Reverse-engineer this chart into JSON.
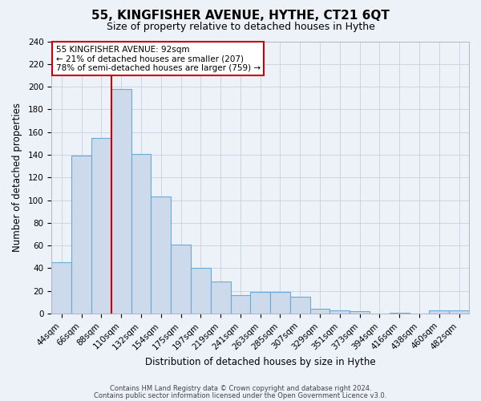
{
  "title": "55, KINGFISHER AVENUE, HYTHE, CT21 6QT",
  "subtitle": "Size of property relative to detached houses in Hythe",
  "xlabel": "Distribution of detached houses by size in Hythe",
  "ylabel": "Number of detached properties",
  "bin_labels": [
    "44sqm",
    "66sqm",
    "88sqm",
    "110sqm",
    "132sqm",
    "154sqm",
    "175sqm",
    "197sqm",
    "219sqm",
    "241sqm",
    "263sqm",
    "285sqm",
    "307sqm",
    "329sqm",
    "351sqm",
    "373sqm",
    "394sqm",
    "416sqm",
    "438sqm",
    "460sqm",
    "482sqm"
  ],
  "bar_heights": [
    45,
    139,
    155,
    198,
    141,
    103,
    61,
    40,
    28,
    16,
    19,
    19,
    15,
    4,
    3,
    2,
    0,
    1,
    0,
    3,
    3
  ],
  "bar_color": "#ccdaeb",
  "bar_edge_color": "#6aaad4",
  "property_line_x": 3,
  "ylim": [
    0,
    240
  ],
  "yticks": [
    0,
    20,
    40,
    60,
    80,
    100,
    120,
    140,
    160,
    180,
    200,
    220,
    240
  ],
  "annotation_title": "55 KINGFISHER AVENUE: 92sqm",
  "annotation_line1": "← 21% of detached houses are smaller (207)",
  "annotation_line2": "78% of semi-detached houses are larger (759) →",
  "annotation_box_facecolor": "#ffffff",
  "annotation_box_edgecolor": "#cc0000",
  "vline_color": "#cc0000",
  "footer1": "Contains HM Land Registry data © Crown copyright and database right 2024.",
  "footer2": "Contains public sector information licensed under the Open Government Licence v3.0.",
  "grid_color": "#c8d0dc",
  "background_color": "#edf2f8",
  "title_fontsize": 11,
  "subtitle_fontsize": 9,
  "xlabel_fontsize": 8.5,
  "ylabel_fontsize": 8.5,
  "tick_fontsize": 7.5,
  "annotation_fontsize": 7.5,
  "footer_fontsize": 6
}
